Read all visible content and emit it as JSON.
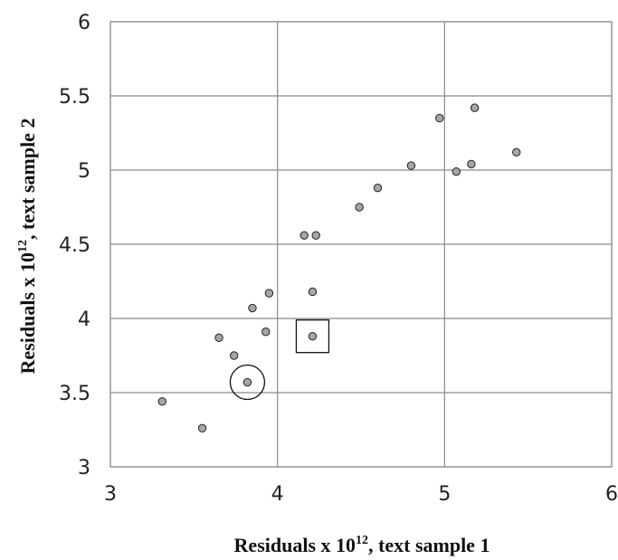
{
  "chart_data": {
    "type": "scatter",
    "title": "",
    "xlabel": {
      "pre": "Residuals x 10",
      "sup": "12",
      "post": ", text sample 1"
    },
    "ylabel": {
      "pre": "Residuals x 10",
      "sup": "12",
      "post": ", text sample 2"
    },
    "xlim": [
      3,
      6
    ],
    "ylim": [
      3,
      6
    ],
    "x_ticks": [
      3,
      4,
      5,
      6
    ],
    "x_tick_labels": [
      "3",
      "4",
      "5",
      "6"
    ],
    "y_ticks": [
      3,
      3.5,
      4,
      4.5,
      5,
      5.5,
      6
    ],
    "y_tick_labels": [
      "3",
      "3.5",
      "4",
      "4.5",
      "5",
      "5.5",
      "6"
    ],
    "grid": true,
    "points": [
      {
        "x": 3.31,
        "y": 3.44
      },
      {
        "x": 3.55,
        "y": 3.26
      },
      {
        "x": 3.65,
        "y": 3.87
      },
      {
        "x": 3.74,
        "y": 3.75
      },
      {
        "x": 3.82,
        "y": 3.57
      },
      {
        "x": 3.85,
        "y": 4.07
      },
      {
        "x": 3.93,
        "y": 3.91
      },
      {
        "x": 3.95,
        "y": 4.17
      },
      {
        "x": 4.16,
        "y": 4.56
      },
      {
        "x": 4.21,
        "y": 4.18
      },
      {
        "x": 4.21,
        "y": 3.88
      },
      {
        "x": 4.23,
        "y": 4.56
      },
      {
        "x": 4.49,
        "y": 4.75
      },
      {
        "x": 4.6,
        "y": 4.88
      },
      {
        "x": 4.8,
        "y": 5.03
      },
      {
        "x": 4.97,
        "y": 5.35
      },
      {
        "x": 5.07,
        "y": 4.99
      },
      {
        "x": 5.16,
        "y": 5.04
      },
      {
        "x": 5.18,
        "y": 5.42
      },
      {
        "x": 5.43,
        "y": 5.12
      }
    ],
    "highlights": [
      {
        "shape": "circle",
        "x": 3.82,
        "y": 3.57
      },
      {
        "shape": "square",
        "x": 4.21,
        "y": 3.88
      }
    ]
  }
}
